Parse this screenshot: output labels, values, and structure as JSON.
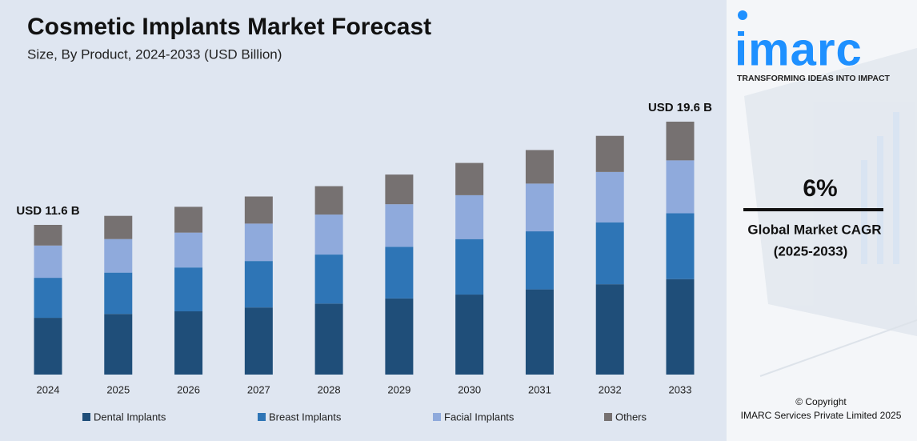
{
  "chart_data": {
    "type": "stacked-bar",
    "title": "Cosmetic Implants Market Forecast",
    "subtitle": "Size, By Product, 2024-2033 (USD Billion)",
    "categories": [
      "2024",
      "2025",
      "2026",
      "2027",
      "2028",
      "2029",
      "2030",
      "2031",
      "2032",
      "2033"
    ],
    "series": [
      {
        "name": "Dental Implants",
        "color": "#1f4e79",
        "values": [
          4.4,
          4.7,
          4.9,
          5.2,
          5.5,
          5.9,
          6.2,
          6.6,
          7.0,
          7.4
        ]
      },
      {
        "name": "Breast Implants",
        "color": "#2e75b6",
        "values": [
          3.1,
          3.2,
          3.4,
          3.6,
          3.8,
          4.0,
          4.3,
          4.5,
          4.8,
          5.1
        ]
      },
      {
        "name": "Facial Implants",
        "color": "#8faadc",
        "values": [
          2.5,
          2.6,
          2.7,
          2.9,
          3.1,
          3.3,
          3.4,
          3.7,
          3.9,
          4.1
        ]
      },
      {
        "name": "Others",
        "color": "#767171",
        "values": [
          1.6,
          1.8,
          2.0,
          2.1,
          2.2,
          2.3,
          2.5,
          2.6,
          2.8,
          3.0
        ]
      }
    ],
    "annotations": [
      {
        "x": "2024",
        "text": "USD 11.6 B"
      },
      {
        "x": "2033",
        "text": "USD 19.6 B"
      }
    ],
    "legend": "bottom"
  },
  "panel": {
    "logo": "imarc",
    "tagline": "TRANSFORMING IDEAS INTO IMPACT",
    "cagr": "6%",
    "cagr_label": "Global Market CAGR",
    "cagr_period": "(2025-2033)",
    "copyright": "© Copyright",
    "company": "IMARC Services Private Limited 2025"
  }
}
